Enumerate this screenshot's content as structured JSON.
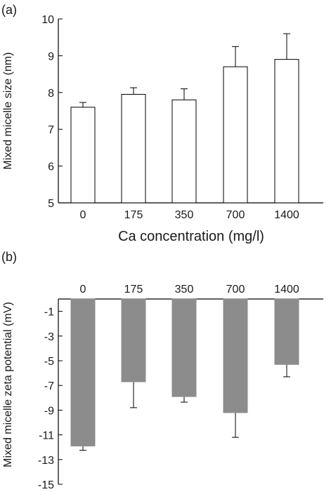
{
  "chart_data": [
    {
      "panel": "(a)",
      "type": "bar",
      "categories": [
        "0",
        "175",
        "350",
        "700",
        "1400"
      ],
      "values": [
        7.6,
        7.95,
        7.8,
        8.7,
        8.9
      ],
      "errors": [
        0.13,
        0.18,
        0.3,
        0.55,
        0.7
      ],
      "xlabel": "Ca concentration (mg/l)",
      "ylabel": "Mixed micelle size (nm)",
      "ylim": [
        5,
        10
      ],
      "yticks": [
        "5",
        "6",
        "7",
        "8",
        "9",
        "10"
      ],
      "bar_fill": "#ffffff",
      "bar_stroke": "#000000"
    },
    {
      "panel": "(b)",
      "type": "bar",
      "categories": [
        "0",
        "175",
        "350",
        "700",
        "1400"
      ],
      "values": [
        -11.9,
        -6.7,
        -7.9,
        -9.2,
        -5.3
      ],
      "errors": [
        0.35,
        2.1,
        0.45,
        2.0,
        1.0
      ],
      "xlabel": "",
      "ylabel": "Mixed micelle zeta potential (mV)",
      "ylim": [
        -15,
        0
      ],
      "yticks": [
        "-1",
        "-3",
        "-5",
        "-7",
        "-9",
        "-11",
        "-13",
        "-15"
      ],
      "bar_fill": "#8c8c8c",
      "bar_stroke": "#8c8c8c"
    }
  ]
}
